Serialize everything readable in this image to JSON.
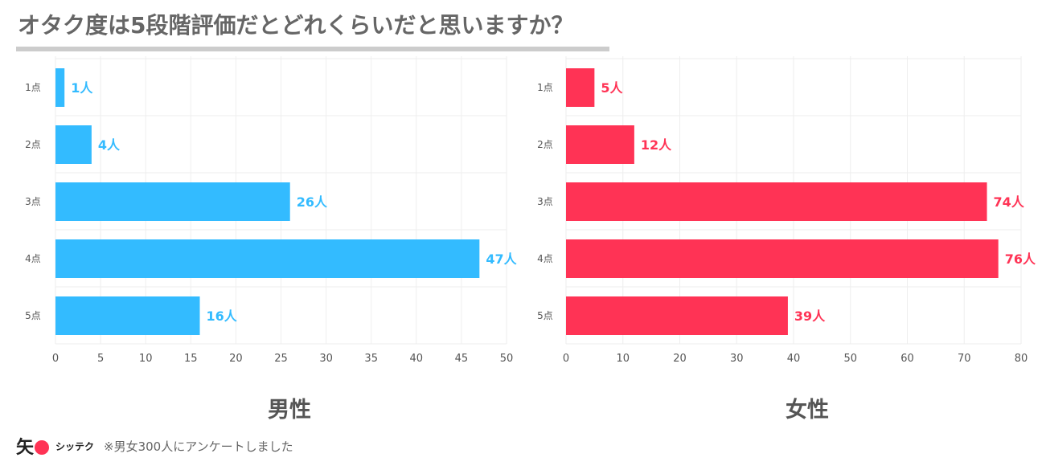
{
  "title": "オタク度は5段階評価だとどれくらいだと思いますか？",
  "chart_data": [
    {
      "type": "bar",
      "orientation": "horizontal",
      "subtitle": "男性",
      "categories": [
        "1点",
        "2点",
        "3点",
        "4点",
        "5点"
      ],
      "values": [
        1,
        4,
        26,
        47,
        16
      ],
      "data_labels": [
        "1人",
        "4人",
        "26人",
        "47人",
        "16人"
      ],
      "xlim": [
        0,
        50
      ],
      "xticks": [
        "0",
        "5",
        "10",
        "15",
        "20",
        "25",
        "30",
        "35",
        "40",
        "45",
        "50"
      ],
      "color": "#33bbff",
      "grid": true
    },
    {
      "type": "bar",
      "orientation": "horizontal",
      "subtitle": "女性",
      "categories": [
        "1点",
        "2点",
        "3点",
        "4点",
        "5点"
      ],
      "values": [
        5,
        12,
        74,
        76,
        39
      ],
      "data_labels": [
        "5人",
        "12人",
        "74人",
        "76人",
        "39人"
      ],
      "xlim": [
        0,
        80
      ],
      "xticks": [
        "0",
        "10",
        "20",
        "30",
        "40",
        "50",
        "60",
        "70",
        "80"
      ],
      "color": "#ff3355",
      "grid": true
    }
  ],
  "footer": {
    "logo_kanji": "矢",
    "logo_text": "シッテク",
    "note": "※男女300人にアンケートしました"
  },
  "colors": {
    "logo_accent": "#ff3355"
  }
}
